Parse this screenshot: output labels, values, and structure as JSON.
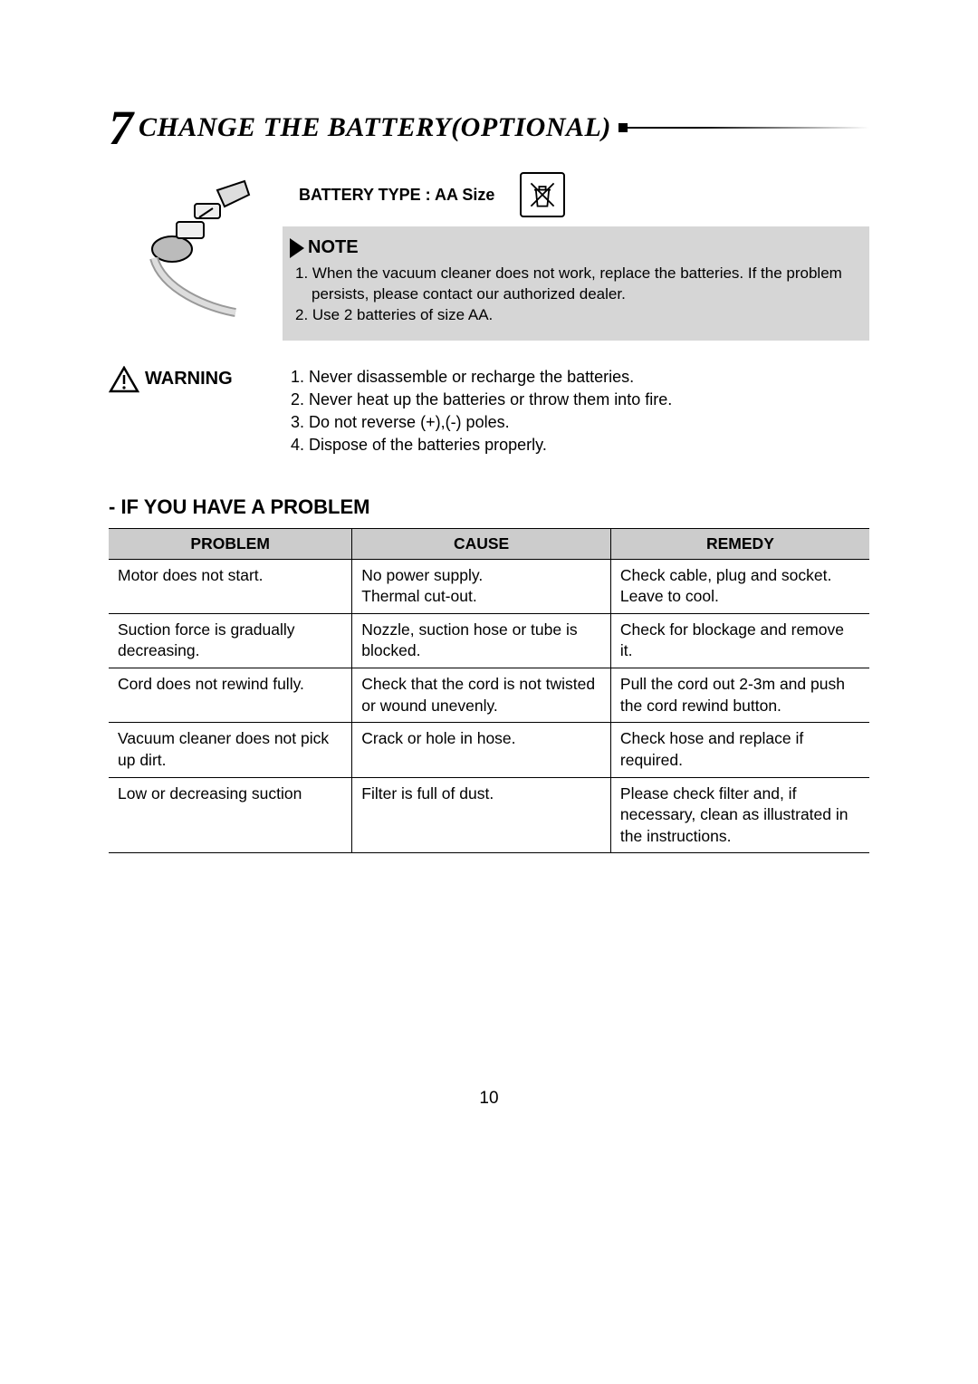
{
  "section": {
    "number": "7",
    "title": "CHANGE THE BATTERY(OPTIONAL)"
  },
  "battery": {
    "type_label": "BATTERY TYPE : AA Size"
  },
  "note": {
    "label": "NOTE",
    "items": [
      "1. When the vacuum cleaner does not work, replace the batteries. If the problem persists, please contact our authorized dealer.",
      "2. Use 2 batteries of size AA."
    ]
  },
  "warning": {
    "label": "WARNING",
    "items": [
      "1. Never disassemble or recharge the batteries.",
      "2. Never heat up the batteries or throw them into fire.",
      "3. Do not reverse (+),(-) poles.",
      "4. Dispose of the batteries properly."
    ]
  },
  "problem_heading": "- IF YOU HAVE A PROBLEM",
  "table": {
    "columns": [
      "PROBLEM",
      "CAUSE",
      "REMEDY"
    ],
    "col_widths_pct": [
      32,
      34,
      34
    ],
    "header_bg": "#cccccc",
    "border_color": "#000000",
    "rows": [
      [
        "Motor does not start.",
        "No power supply.\nThermal cut-out.",
        "Check cable, plug and socket.\nLeave to cool."
      ],
      [
        "Suction force is gradually decreasing.",
        "Nozzle, suction hose or tube is blocked.",
        "Check for blockage and remove it."
      ],
      [
        "Cord does not rewind fully.",
        "Check that the cord is not twisted or wound unevenly.",
        "Pull the cord out 2-3m and push the cord rewind button."
      ],
      [
        "Vacuum cleaner does not pick up dirt.",
        "Crack or hole in hose.",
        "Check hose and replace if required."
      ],
      [
        "Low or decreasing suction",
        "Filter is  full of dust.",
        "Please check filter and, if necessary, clean as illustrated in the instructions."
      ]
    ]
  },
  "page_number": "10",
  "colors": {
    "note_bg": "#d6d6d6",
    "page_bg": "#ffffff",
    "text": "#000000"
  },
  "typography": {
    "title_font": "Times New Roman italic bold",
    "title_size_pt": 22,
    "number_size_pt": 40,
    "body_size_pt": 13
  }
}
